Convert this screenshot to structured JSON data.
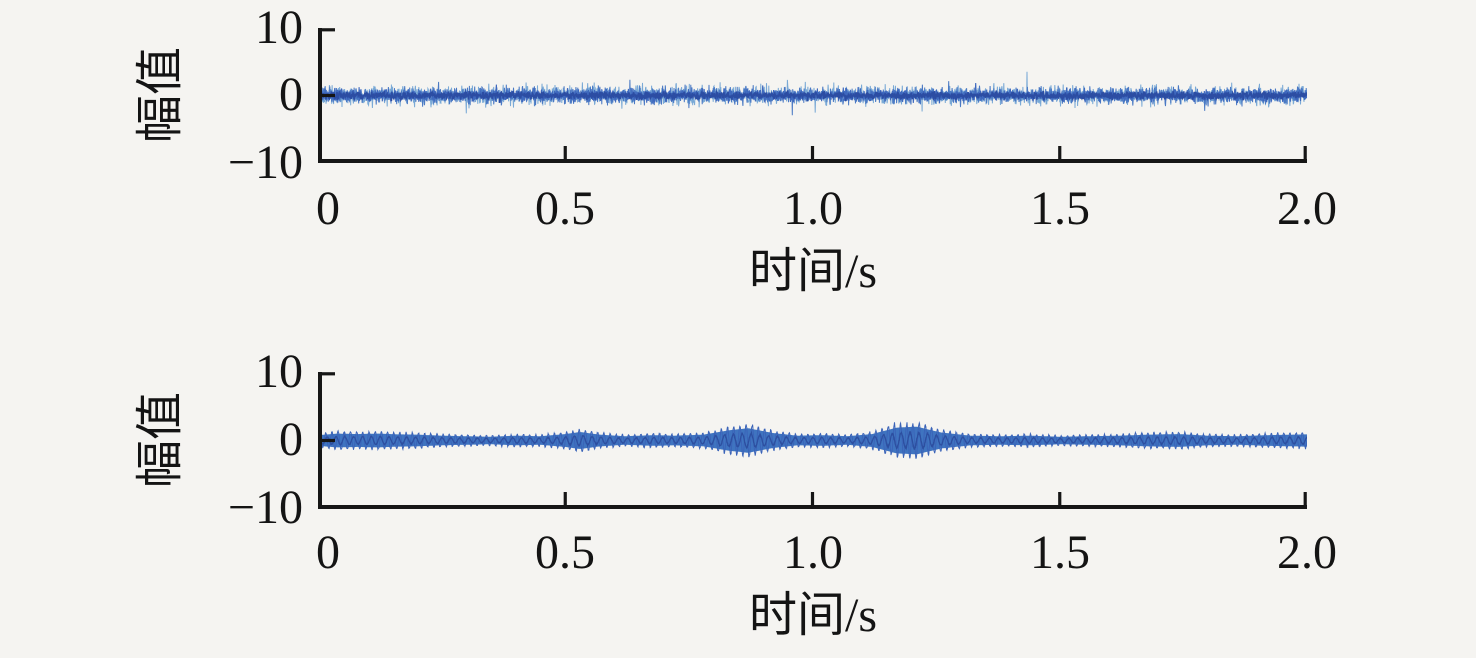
{
  "figure": {
    "background": "#f5f4f1",
    "axis_color": "#161616",
    "text_color": "#141414",
    "primary_line_color": "#3e68be"
  },
  "chart_data": [
    {
      "type": "line",
      "subplot": "top",
      "title": "",
      "xlabel": "时间/s",
      "ylabel": "幅值",
      "xlim": [
        0,
        2
      ],
      "ylim": [
        -10,
        10
      ],
      "xticks": [
        "0",
        "0.5",
        "1.0",
        "1.5",
        "2.0"
      ],
      "xtick_vals": [
        0,
        0.5,
        1.0,
        1.5,
        2.0
      ],
      "yticks": [
        "10",
        "0",
        "−10"
      ],
      "ytick_vals": [
        10,
        0,
        -10
      ],
      "grid": false,
      "legend": false,
      "series": [
        {
          "kind": "broadband-noise",
          "description": "dense zero-mean noise band, typical amplitude ±2, frequent excursions ±3, occasional spikes to ±4.5",
          "amplitude": 2.15,
          "spike_probability": 0.012,
          "spike_gain": 1.9,
          "clip": 5.0,
          "points": 2600,
          "seed": 911,
          "layers": [
            {
              "scale": 1.0,
              "color": "#79a9d6",
              "width": 1.0
            },
            {
              "scale": 0.85,
              "color": "#4a79c4",
              "width": 1.0
            },
            {
              "scale": 0.62,
              "color": "#3e68be",
              "width": 1.1
            },
            {
              "scale": 0.36,
              "color": "#2c4da3",
              "width": 1.6
            }
          ]
        }
      ]
    },
    {
      "type": "line",
      "subplot": "bottom",
      "title": "",
      "xlabel": "时间/s",
      "ylabel": "幅值",
      "xlim": [
        0,
        2
      ],
      "ylim": [
        -10,
        10
      ],
      "xticks": [
        "0",
        "0.5",
        "1.0",
        "1.5",
        "2.0"
      ],
      "xtick_vals": [
        0,
        0.5,
        1.0,
        1.5,
        2.0
      ],
      "yticks": [
        "10",
        "0",
        "−10"
      ],
      "ytick_vals": [
        10,
        0,
        -10
      ],
      "grid": false,
      "legend": false,
      "series": [
        {
          "kind": "amplitude-modulated",
          "description": "narrow-band oscillation with beating envelope; bulges near t=0.53, 0.85 and 1.19 s",
          "carrier_hz": 80,
          "points": 3400,
          "seed": 4217,
          "color": "#3a63b8",
          "fill_color": "#3f74c0",
          "core_color": "#2d4fa0",
          "fill_scale": 0.78,
          "noise_fraction": 0.18,
          "envelope": [
            [
              0.0,
              1.0
            ],
            [
              0.04,
              1.3
            ],
            [
              0.08,
              1.2
            ],
            [
              0.12,
              1.3
            ],
            [
              0.16,
              1.15
            ],
            [
              0.2,
              1.1
            ],
            [
              0.25,
              0.9
            ],
            [
              0.3,
              0.8
            ],
            [
              0.35,
              0.7
            ],
            [
              0.4,
              0.9
            ],
            [
              0.45,
              0.8
            ],
            [
              0.5,
              1.2
            ],
            [
              0.53,
              1.6
            ],
            [
              0.57,
              1.1
            ],
            [
              0.62,
              0.8
            ],
            [
              0.68,
              1.0
            ],
            [
              0.72,
              0.9
            ],
            [
              0.78,
              1.1
            ],
            [
              0.83,
              1.9
            ],
            [
              0.87,
              2.3
            ],
            [
              0.92,
              1.4
            ],
            [
              0.97,
              0.9
            ],
            [
              1.02,
              1.0
            ],
            [
              1.07,
              0.8
            ],
            [
              1.12,
              1.2
            ],
            [
              1.17,
              2.4
            ],
            [
              1.21,
              2.6
            ],
            [
              1.26,
              1.5
            ],
            [
              1.32,
              0.9
            ],
            [
              1.38,
              0.8
            ],
            [
              1.44,
              0.9
            ],
            [
              1.5,
              0.7
            ],
            [
              1.56,
              0.8
            ],
            [
              1.62,
              0.9
            ],
            [
              1.68,
              1.1
            ],
            [
              1.74,
              1.2
            ],
            [
              1.8,
              0.9
            ],
            [
              1.86,
              0.8
            ],
            [
              1.92,
              1.0
            ],
            [
              2.0,
              1.15
            ]
          ]
        }
      ]
    }
  ]
}
